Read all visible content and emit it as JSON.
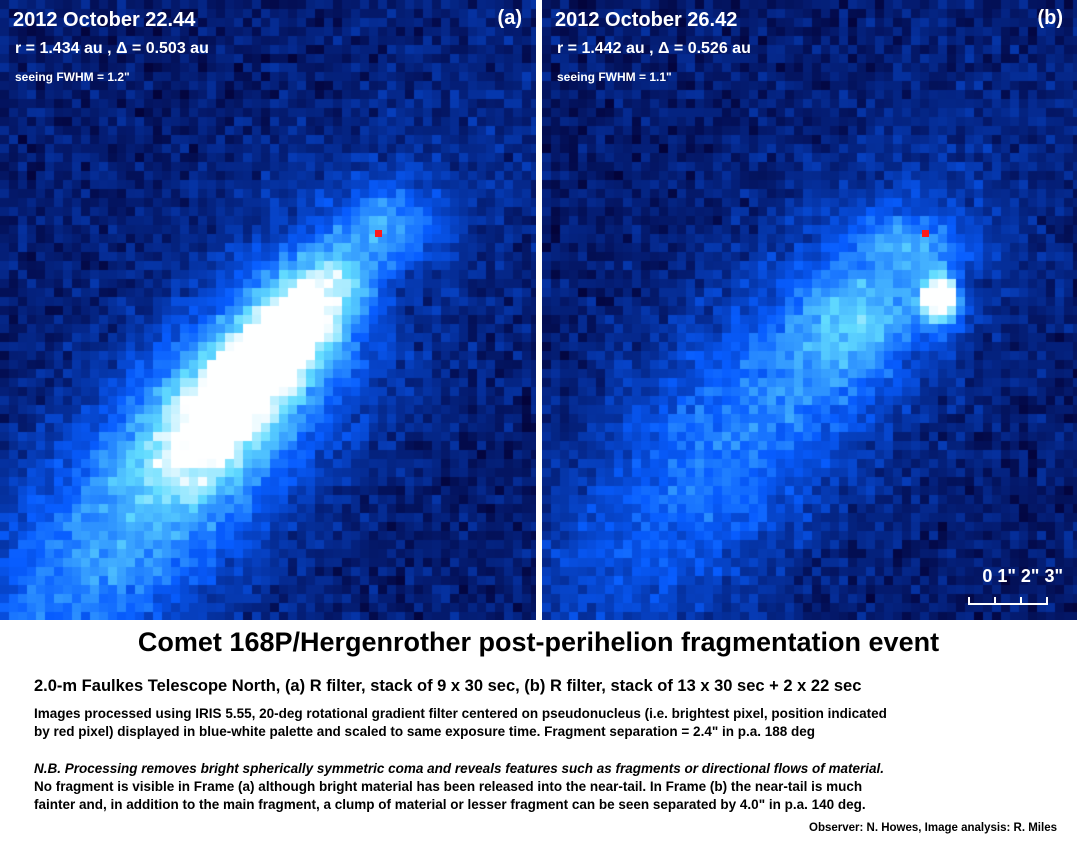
{
  "panels": [
    {
      "id": "a",
      "date": "2012 October 22.44",
      "distances": "r = 1.434 au ,  Δ = 0.503 au",
      "seeing": "seeing FWHM = 1.2\"",
      "label": "(a)"
    },
    {
      "id": "b",
      "date": "2012 October 26.42",
      "distances": "r = 1.442 au ,  Δ = 0.526 au",
      "seeing": "seeing FWHM = 1.1\"",
      "label": "(b)"
    }
  ],
  "scale_bar": {
    "labels": "0 1\" 2\" 3\""
  },
  "colors": {
    "background": "#03033a",
    "pseudonucleus_marker": "#ff1a1a",
    "palette": "blue-white"
  },
  "caption": {
    "title": "Comet 168P/Hergenrother post-perihelion fragmentation event",
    "telescope": "2.0-m Faulkes Telescope North,  (a) R filter, stack of 9 x 30 sec,   (b)  R filter, stack of 13 x 30 sec + 2 x 22 sec",
    "processing_line1": "Images processed using IRIS 5.55, 20-deg rotational gradient filter centered on pseudonucleus (i.e. brightest pixel, position indicated",
    "processing_line2": "by red pixel) displayed in blue-white palette and scaled to same exposure time.  Fragment separation = 2.4\" in p.a. 188 deg",
    "note": "N.B. Processing removes bright spherically symmetric coma and reveals features such as fragments or directional flows of material.",
    "observation_line1": "No fragment is visible in Frame (a) although bright material has been released into the near-tail.   In Frame (b) the near-tail is much",
    "observation_line2": "fainter and, in addition to the main fragment, a clump of material or lesser fragment can be seen separated by 4.0\" in p.a. 140 deg.",
    "credits": "Observer:  N. Howes,  Image analysis:  R. Miles"
  }
}
